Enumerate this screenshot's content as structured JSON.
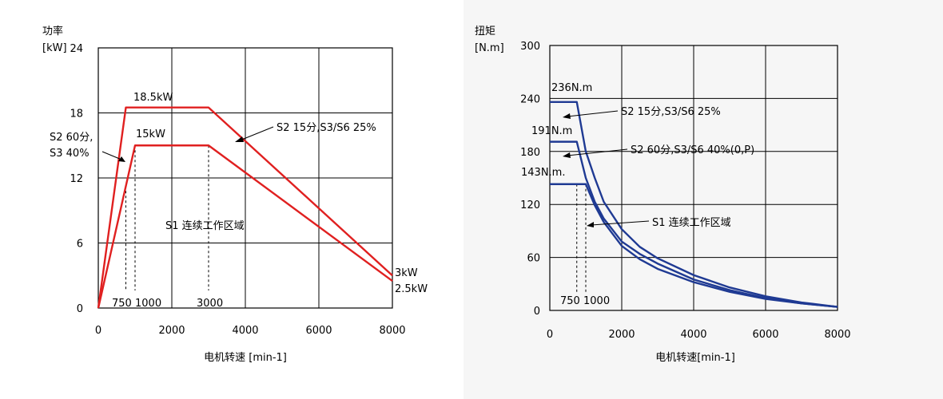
{
  "chart_data": [
    {
      "type": "line",
      "title": "",
      "ylabel_line1": "功率",
      "ylabel_line2": "[kW]",
      "xlabel": "电机转速 [min-1]",
      "xlim": [
        0,
        8000
      ],
      "ylim": [
        0,
        24
      ],
      "x_ticks": [
        "0",
        "2000",
        "4000",
        "6000",
        "8000"
      ],
      "x_tick_values": [
        0,
        2000,
        4000,
        6000,
        8000
      ],
      "y_ticks": [
        "0",
        "6",
        "12",
        "18",
        "24"
      ],
      "y_tick_values": [
        0,
        6,
        12,
        18,
        24
      ],
      "grid": true,
      "series_color": "#e02020",
      "series": [
        {
          "x": [
            0,
            750,
            3000,
            8000
          ],
          "y": [
            0,
            18.5,
            18.5,
            3
          ]
        },
        {
          "x": [
            0,
            1000,
            3000,
            8000
          ],
          "y": [
            0,
            15,
            15,
            2.5
          ]
        }
      ],
      "guide_x": [
        750,
        1000,
        3000
      ],
      "annotations": {
        "peak_power": "18.5kW",
        "s2_power": "15kW",
        "s2_60_line1": "S2 60分,",
        "s2_60_line2": "S3 40%",
        "s2_15": "S2 15分,S3/S6 25%",
        "s1": "S1 连续工作区域",
        "end_3kw": "3kW",
        "end_25kw": "2.5kW",
        "x750": "750",
        "x1000": "1000",
        "x3000": "3000"
      }
    },
    {
      "type": "line",
      "title": "",
      "ylabel_line1": "扭矩",
      "ylabel_line2": "[N.m]",
      "xlabel": "电机转速[min-1]",
      "xlim": [
        0,
        8000
      ],
      "ylim": [
        0,
        300
      ],
      "x_ticks": [
        "0",
        "2000",
        "4000",
        "6000",
        "8000"
      ],
      "x_tick_values": [
        0,
        2000,
        4000,
        6000,
        8000
      ],
      "y_ticks": [
        "0",
        "60",
        "120",
        "180",
        "240",
        "300"
      ],
      "y_tick_values": [
        0,
        60,
        120,
        180,
        240,
        300
      ],
      "grid": true,
      "series_color": "#1f3a93",
      "series": [
        {
          "x": [
            0,
            750,
            1000,
            1250,
            1500,
            2000,
            2500,
            3000,
            4000,
            5000,
            6000,
            7000,
            8000
          ],
          "y": [
            236,
            236,
            180,
            150,
            123,
            92,
            72,
            59,
            40,
            26,
            16,
            9,
            4
          ]
        },
        {
          "x": [
            0,
            750,
            1000,
            1250,
            1500,
            2000,
            2500,
            3000,
            4000,
            5000,
            6000,
            7000,
            8000
          ],
          "y": [
            191,
            191,
            150,
            123,
            104,
            78,
            64,
            53,
            35,
            23,
            14,
            8,
            4
          ]
        },
        {
          "x": [
            0,
            1000,
            1250,
            1500,
            2000,
            2500,
            3000,
            4000,
            5000,
            6000,
            7000,
            8000
          ],
          "y": [
            143,
            143,
            119,
            100,
            73,
            58,
            47,
            32,
            21,
            13,
            8,
            4
          ]
        }
      ],
      "guide_x": [
        750,
        1000
      ],
      "annotations": {
        "t236": "236N.m",
        "t191": "191N.m",
        "t143": "143N.m.",
        "s2_15": "S2 15分,S3/S6 25%",
        "s2_60": "S2 60分,S3/S6 40%(0,P)",
        "s1": "S1 连续工作区域",
        "x750": "750",
        "x1000": "1000"
      }
    }
  ]
}
